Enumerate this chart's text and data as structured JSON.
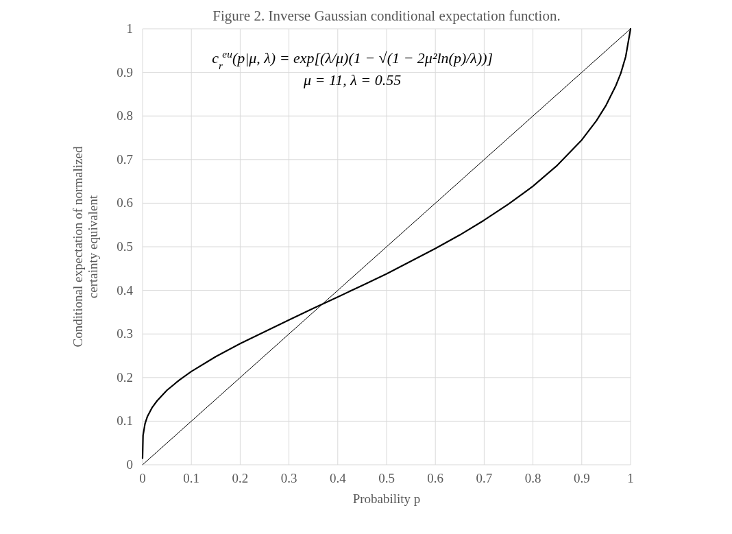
{
  "chart_data": {
    "type": "line",
    "title": "Figure 2. Inverse Gaussian conditional expectation function.",
    "xlabel": "Probability p",
    "ylabel": "Conditional expectation of normalized certainty equivalent",
    "annotations": [
      "c$_{r}$$^{eu}$(p|μ, λ) = exp[(λ/μ)(1 − √(1 − 2μ²ln(p)/λ))]",
      "μ = 11, λ = 0.55"
    ],
    "series": [
      {
        "color": "#000000",
        "x": [
          0,
          0.001,
          0.005,
          0.01,
          0.02,
          0.03,
          0.05,
          0.075,
          0.1,
          0.15,
          0.2,
          0.25,
          0.3,
          0.35,
          0.4,
          0.45,
          0.5,
          0.55,
          0.6,
          0.65,
          0.7,
          0.75,
          0.8,
          0.85,
          0.9,
          0.93,
          0.95,
          0.97,
          0.98,
          0.99,
          1
        ],
        "values": [
          0.015,
          0.067,
          0.094,
          0.111,
          0.132,
          0.147,
          0.171,
          0.194,
          0.214,
          0.248,
          0.278,
          0.305,
          0.332,
          0.359,
          0.385,
          0.411,
          0.438,
          0.467,
          0.496,
          0.527,
          0.561,
          0.598,
          0.639,
          0.687,
          0.745,
          0.789,
          0.825,
          0.87,
          0.898,
          0.936,
          1
        ]
      },
      {
        "color": "#000000",
        "x": [
          0,
          1
        ],
        "values": [
          0,
          1
        ]
      }
    ],
    "xlim": [
      0,
      1
    ],
    "xticks": [
      0,
      0.1,
      0.2,
      0.3,
      0.4,
      0.5,
      0.6,
      0.7,
      0.8,
      0.9,
      1
    ],
    "ylim": [
      0,
      1
    ],
    "yticks": [
      0,
      0.1,
      0.2,
      0.3,
      0.4,
      0.5,
      0.6,
      0.7,
      0.8,
      0.9,
      1
    ],
    "grid": true,
    "marker": "none",
    "line_style": "solid"
  }
}
